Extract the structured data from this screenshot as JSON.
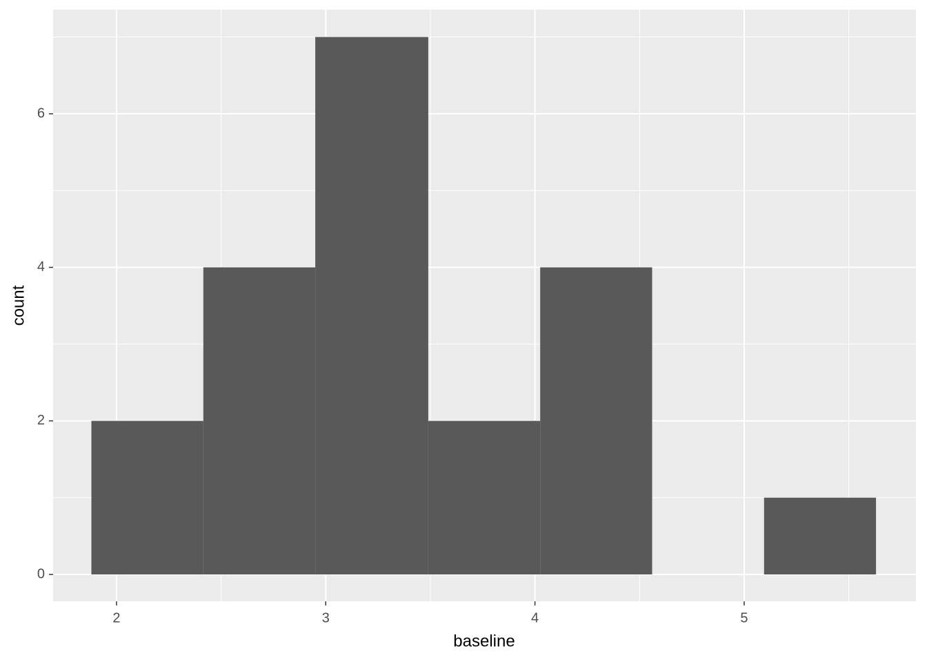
{
  "chart_data": {
    "type": "histogram",
    "bins": [
      1.88,
      2.415,
      2.95,
      3.49,
      4.025,
      4.56,
      5.095,
      5.63
    ],
    "counts": [
      2,
      4,
      7,
      2,
      4,
      0,
      1
    ],
    "color": "#595959",
    "xlabel": "baseline",
    "ylabel": "count",
    "xlim": [
      1.697,
      5.821
    ],
    "ylim": [
      -0.35,
      7.356
    ],
    "xticks": [
      2,
      3,
      4,
      5
    ],
    "yticks": [
      0,
      2,
      4,
      6
    ],
    "xminor": [
      2.5,
      3.5,
      4.5,
      5.5
    ],
    "yminor": [
      1,
      3,
      5,
      7
    ],
    "grid": true
  }
}
